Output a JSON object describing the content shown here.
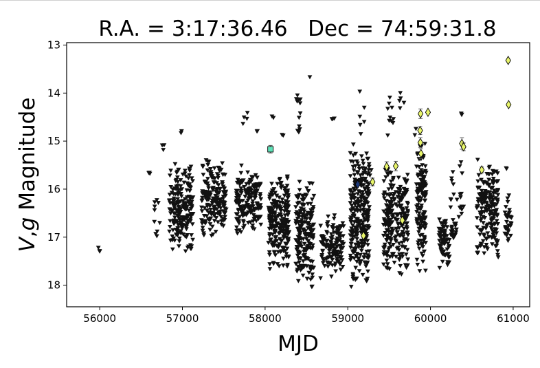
{
  "chart_data": {
    "type": "scatter",
    "title": "R.A. = 3:17:36.46   Dec = 74:59:31.8",
    "xlabel": "MJD",
    "ylabel_parts": [
      "V",
      ",",
      "g",
      " Magnitude"
    ],
    "xlim": [
      55600,
      61200
    ],
    "ylim": [
      18.45,
      12.95
    ],
    "y_inverted": true,
    "grid": false,
    "x_ticks": [
      56000,
      57000,
      58000,
      59000,
      60000,
      61000
    ],
    "x_tick_labels": [
      "56000",
      "57000",
      "58000",
      "59000",
      "60000",
      "61000"
    ],
    "y_ticks": [
      13,
      14,
      15,
      16,
      17,
      18
    ],
    "y_tick_labels": [
      "13",
      "14",
      "15",
      "16",
      "17",
      "18"
    ],
    "colors": {
      "limit_marker": "#111111",
      "detection_yellow": "#e8f56a",
      "detection_teal": "#5fe2b8",
      "detection_navy": "#1f3a7a",
      "errorbar": "#555555"
    },
    "upper_limit_clusters": [
      {
        "x": [
          55960,
          56000
        ],
        "y": [
          17.2,
          17.4
        ],
        "n": 3
      },
      {
        "x": [
          56590,
          56630
        ],
        "y": [
          15.6,
          15.7
        ],
        "n": 3
      },
      {
        "x": [
          56660,
          56760
        ],
        "y": [
          16.0,
          17.1
        ],
        "n": 10
      },
      {
        "x": [
          56740,
          56790
        ],
        "y": [
          14.9,
          15.3
        ],
        "n": 3
      },
      {
        "x": [
          56840,
          57130
        ],
        "y": [
          15.4,
          17.4
        ],
        "n": 210
      },
      {
        "x": [
          56950,
          56990
        ],
        "y": [
          14.7,
          15.1
        ],
        "n": 2
      },
      {
        "x": [
          57230,
          57530
        ],
        "y": [
          15.3,
          17.1
        ],
        "n": 200
      },
      {
        "x": [
          57650,
          57950
        ],
        "y": [
          15.5,
          17.0
        ],
        "n": 180
      },
      {
        "x": [
          57730,
          57790
        ],
        "y": [
          14.2,
          14.9
        ],
        "n": 4
      },
      {
        "x": [
          57900,
          57960
        ],
        "y": [
          14.6,
          15.0
        ],
        "n": 2
      },
      {
        "x": [
          58040,
          58290
        ],
        "y": [
          15.6,
          17.8
        ],
        "n": 240
      },
      {
        "x": [
          58080,
          58120
        ],
        "y": [
          14.4,
          14.6
        ],
        "n": 2
      },
      {
        "x": [
          58200,
          58230
        ],
        "y": [
          14.8,
          15.0
        ],
        "n": 2
      },
      {
        "x": [
          58370,
          58590
        ],
        "y": [
          15.8,
          18.1
        ],
        "n": 200
      },
      {
        "x": [
          58370,
          58460
        ],
        "y": [
          13.7,
          15.2
        ],
        "n": 12
      },
      {
        "x": [
          58540,
          58570
        ],
        "y": [
          13.5,
          13.7
        ],
        "n": 1
      },
      {
        "x": [
          58670,
          58950
        ],
        "y": [
          16.5,
          17.9
        ],
        "n": 140
      },
      {
        "x": [
          58800,
          58840
        ],
        "y": [
          14.4,
          14.7
        ],
        "n": 3
      },
      {
        "x": [
          59030,
          59260
        ],
        "y": [
          15.0,
          18.2
        ],
        "n": 300
      },
      {
        "x": [
          59140,
          59200
        ],
        "y": [
          13.8,
          15.0
        ],
        "n": 6
      },
      {
        "x": [
          59240,
          59290
        ],
        "y": [
          15.2,
          16.2
        ],
        "n": 4
      },
      {
        "x": [
          59430,
          59730
        ],
        "y": [
          15.4,
          17.9
        ],
        "n": 260
      },
      {
        "x": [
          59470,
          59560
        ],
        "y": [
          14.0,
          15.3
        ],
        "n": 10
      },
      {
        "x": [
          59620,
          59680
        ],
        "y": [
          13.9,
          14.7
        ],
        "n": 5
      },
      {
        "x": [
          59830,
          59950
        ],
        "y": [
          15.0,
          17.8
        ],
        "n": 150
      },
      {
        "x": [
          59810,
          59850
        ],
        "y": [
          14.5,
          15.0
        ],
        "n": 2
      },
      {
        "x": [
          60100,
          60230
        ],
        "y": [
          16.5,
          17.7
        ],
        "n": 70
      },
      {
        "x": [
          60230,
          60290
        ],
        "y": [
          15.4,
          16.5
        ],
        "n": 8
      },
      {
        "x": [
          60240,
          60320
        ],
        "y": [
          16.5,
          17.2
        ],
        "n": 20
      },
      {
        "x": [
          60320,
          60410
        ],
        "y": [
          15.1,
          17.2
        ],
        "n": 14
      },
      {
        "x": [
          60360,
          60400
        ],
        "y": [
          14.1,
          14.8
        ],
        "n": 3
      },
      {
        "x": [
          60560,
          60820
        ],
        "y": [
          15.3,
          17.5
        ],
        "n": 200
      },
      {
        "x": [
          60890,
          60980
        ],
        "y": [
          16.0,
          17.3
        ],
        "n": 35
      },
      {
        "x": [
          60900,
          60940
        ],
        "y": [
          15.4,
          15.7
        ],
        "n": 2
      }
    ],
    "detections": [
      {
        "x": 58065,
        "y": 15.17,
        "err": 0.08,
        "marker": "square",
        "color": "#5fe2b8"
      },
      {
        "x": 59120,
        "y": 15.9,
        "err": 0.0,
        "marker": "diamond",
        "color": "#1f3a7a"
      },
      {
        "x": 59190,
        "y": 16.97,
        "err": 0.0,
        "marker": "diamond",
        "color": "#e8f56a"
      },
      {
        "x": 59300,
        "y": 15.85,
        "err": 0.08,
        "marker": "diamond",
        "color": "#e8f56a"
      },
      {
        "x": 59470,
        "y": 15.53,
        "err": 0.1,
        "marker": "diamond",
        "color": "#e8f56a"
      },
      {
        "x": 59580,
        "y": 15.52,
        "err": 0.1,
        "marker": "diamond",
        "color": "#e8f56a"
      },
      {
        "x": 59660,
        "y": 16.65,
        "err": 0.0,
        "marker": "diamond",
        "color": "#e8f56a"
      },
      {
        "x": 59880,
        "y": 14.43,
        "err": 0.1,
        "marker": "diamond",
        "color": "#e8f56a"
      },
      {
        "x": 59875,
        "y": 14.78,
        "err": 0.08,
        "marker": "diamond",
        "color": "#e8f56a"
      },
      {
        "x": 59878,
        "y": 15.03,
        "err": 0.1,
        "marker": "diamond",
        "color": "#e8f56a"
      },
      {
        "x": 59885,
        "y": 15.26,
        "err": 0.1,
        "marker": "diamond",
        "color": "#e8f56a"
      },
      {
        "x": 59970,
        "y": 14.4,
        "err": 0.0,
        "marker": "diamond",
        "color": "#e8f56a"
      },
      {
        "x": 60380,
        "y": 15.05,
        "err": 0.12,
        "marker": "diamond",
        "color": "#e8f56a"
      },
      {
        "x": 60400,
        "y": 15.12,
        "err": 0.08,
        "marker": "diamond",
        "color": "#e8f56a"
      },
      {
        "x": 60620,
        "y": 15.6,
        "err": 0.06,
        "marker": "diamond",
        "color": "#e8f56a"
      },
      {
        "x": 60940,
        "y": 13.32,
        "err": 0.0,
        "marker": "diamond",
        "color": "#e8f56a"
      },
      {
        "x": 60945,
        "y": 14.24,
        "err": 0.0,
        "marker": "diamond",
        "color": "#e8f56a"
      }
    ]
  }
}
